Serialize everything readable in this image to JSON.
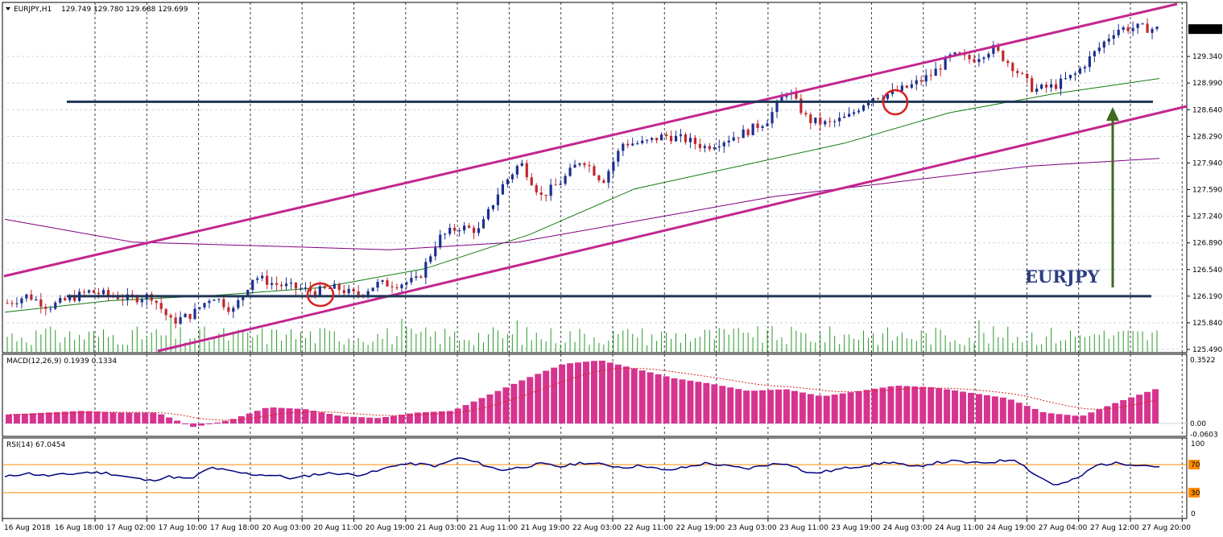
{
  "header": {
    "symbol": "EURJPY,H1",
    "ohlc": "129.749 129.780 129.688 129.699"
  },
  "annotation": "EURJPY",
  "colors": {
    "bull": "#1c2f8f",
    "bear": "#c1272d",
    "channel": "#c2278f",
    "level": "#1f3556",
    "ma_fast": "#117a11",
    "ma_slow": "#800080",
    "volume": "#2a9a2a",
    "macd_hist": "#d6348f",
    "rsi": "#000080",
    "rsi_levels": "#ff8c00",
    "arrow": "#3e6b1e",
    "circle": "#d62020"
  },
  "chart_data": [
    {
      "type": "candlestick",
      "title": "EURJPY,H1",
      "ylim": [
        125.49,
        130.0
      ],
      "y_ticks": [
        "129.340",
        "128.990",
        "128.640",
        "128.290",
        "127.940",
        "127.590",
        "127.240",
        "126.890",
        "126.540",
        "126.190",
        "125.840",
        "125.490"
      ],
      "last_price_label": "129.699",
      "x_ticks": [
        "16 Aug 2018",
        "16 Aug 18:00",
        "17 Aug 02:00",
        "17 Aug 10:00",
        "17 Aug 18:00",
        "20 Aug 03:00",
        "20 Aug 11:00",
        "20 Aug 19:00",
        "21 Aug 03:00",
        "21 Aug 11:00",
        "21 Aug 19:00",
        "22 Aug 03:00",
        "22 Aug 11:00",
        "22 Aug 19:00",
        "23 Aug 03:00",
        "23 Aug 11:00",
        "23 Aug 19:00",
        "24 Aug 03:00",
        "24 Aug 11:00",
        "24 Aug 19:00",
        "27 Aug 04:00",
        "27 Aug 12:00",
        "27 Aug 20:00"
      ],
      "close_path": [
        126.1,
        126.2,
        126.05,
        126.15,
        126.25,
        126.2,
        126.15,
        126.2,
        125.85,
        125.95,
        126.2,
        126.0,
        126.45,
        126.35,
        126.3,
        126.25,
        126.3,
        126.2,
        126.35,
        126.35,
        126.4,
        126.95,
        127.1,
        127.05,
        127.6,
        127.95,
        127.5,
        127.7,
        128.0,
        127.7,
        128.2,
        128.2,
        128.3,
        128.25,
        128.15,
        128.25,
        128.35,
        128.5,
        128.9,
        128.5,
        128.45,
        128.55,
        128.8,
        128.85,
        128.95,
        129.1,
        129.35,
        129.3,
        129.45,
        129.2,
        128.9,
        128.95,
        129.1,
        129.4,
        129.7,
        129.72,
        129.699
      ],
      "support_level": 126.19,
      "resistance_level": 128.745,
      "ma_fast": [
        125.98,
        126.13,
        126.2,
        126.3,
        126.55,
        127.0,
        127.6,
        127.9,
        128.2,
        128.6,
        128.85,
        129.05
      ],
      "ma_slow": [
        127.2,
        126.9,
        126.85,
        126.8,
        126.9,
        127.2,
        127.5,
        127.7,
        127.9,
        128.0
      ]
    },
    {
      "type": "bar",
      "title": "MACD(12,26,9) 0.1939 0.1334",
      "y_ticks": [
        "0.3522",
        "0.00",
        "-0.0603"
      ],
      "ylim": [
        -0.0603,
        0.3522
      ],
      "histogram_path": [
        0.05,
        0.06,
        0.07,
        0.06,
        0.06,
        -0.02,
        0.02,
        0.09,
        0.08,
        0.04,
        0.03,
        0.06,
        0.07,
        0.16,
        0.25,
        0.33,
        0.35,
        0.3,
        0.25,
        0.22,
        0.18,
        0.19,
        0.15,
        0.18,
        0.21,
        0.2,
        0.17,
        0.14,
        0.06,
        0.04,
        0.12,
        0.19
      ]
    },
    {
      "type": "line",
      "title": "RSI(14) 67.0454",
      "y_ticks": [
        "100",
        "70",
        "30",
        "0"
      ],
      "ylim": [
        0,
        100
      ],
      "levels": [
        70,
        30
      ],
      "values_path": [
        52,
        58,
        54,
        56,
        59,
        58,
        52,
        47,
        53,
        49,
        66,
        60,
        56,
        55,
        50,
        56,
        58,
        55,
        60,
        70,
        71,
        68,
        80,
        72,
        62,
        66,
        71,
        67,
        73,
        70,
        66,
        69,
        61,
        66,
        72,
        68,
        64,
        70,
        72,
        57,
        61,
        66,
        70,
        74,
        66,
        72,
        75,
        72,
        74,
        78,
        55,
        40,
        50,
        70,
        72,
        70,
        67
      ]
    }
  ]
}
